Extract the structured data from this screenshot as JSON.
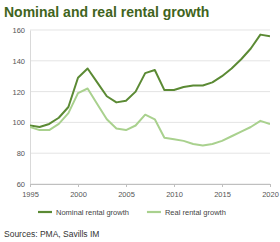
{
  "chart_data": {
    "type": "line",
    "title": "Nominal and real rental growth",
    "source": "Sources: PMA, Savills IM",
    "x": [
      1995,
      1996,
      1997,
      1998,
      1999,
      2000,
      2001,
      2002,
      2003,
      2004,
      2005,
      2006,
      2007,
      2008,
      2009,
      2010,
      2011,
      2012,
      2013,
      2014,
      2015,
      2016,
      2017,
      2018,
      2019,
      2020
    ],
    "series": [
      {
        "name": "Nominal rental growth",
        "color": "#5b8a34",
        "values": [
          98,
          97,
          99,
          103,
          110,
          129,
          135,
          126,
          117,
          113,
          114,
          120,
          132,
          134,
          121,
          121,
          123,
          124,
          124,
          126,
          130,
          135,
          141,
          148,
          157,
          156
        ]
      },
      {
        "name": "Real rental growth",
        "color": "#a9d18e",
        "values": [
          97,
          95,
          95,
          99,
          106,
          119,
          122,
          112,
          102,
          96,
          95,
          98,
          105,
          102,
          90,
          89,
          88,
          86,
          85,
          86,
          88,
          91,
          94,
          97,
          101,
          99
        ]
      }
    ],
    "xlim": [
      1995,
      2020
    ],
    "xticks": [
      1995,
      2000,
      2005,
      2010,
      2015,
      2020
    ],
    "ylim": [
      60,
      160
    ],
    "yticks": [
      60,
      80,
      100,
      120,
      140,
      160
    ],
    "grid": true,
    "legend": "bottom"
  }
}
